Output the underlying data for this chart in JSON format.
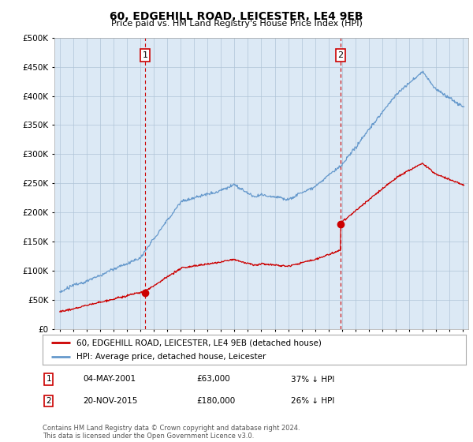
{
  "title": "60, EDGEHILL ROAD, LEICESTER, LE4 9EB",
  "subtitle": "Price paid vs. HM Land Registry's House Price Index (HPI)",
  "legend_line1": "60, EDGEHILL ROAD, LEICESTER, LE4 9EB (detached house)",
  "legend_line2": "HPI: Average price, detached house, Leicester",
  "table_rows": [
    {
      "num": "1",
      "date": "04-MAY-2001",
      "price": "£63,000",
      "hpi": "37% ↓ HPI"
    },
    {
      "num": "2",
      "date": "20-NOV-2015",
      "price": "£180,000",
      "hpi": "26% ↓ HPI"
    }
  ],
  "footer": "Contains HM Land Registry data © Crown copyright and database right 2024.\nThis data is licensed under the Open Government Licence v3.0.",
  "sale1_year": 2001.35,
  "sale1_price": 63000,
  "sale2_year": 2015.9,
  "sale2_price": 180000,
  "hpi_color": "#6699cc",
  "sale_color": "#cc0000",
  "vline_color": "#cc0000",
  "bg_color": "#ffffff",
  "chart_bg_color": "#dce9f5",
  "grid_color": "#b0c4d8",
  "ylim_max": 500000
}
